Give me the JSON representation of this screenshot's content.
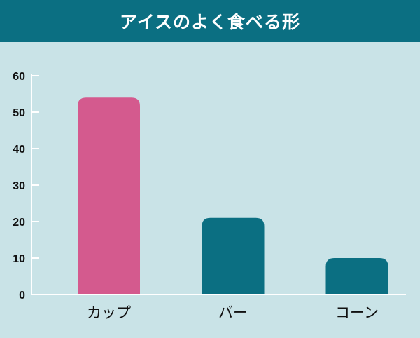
{
  "chart_data": {
    "type": "bar",
    "title": "アイスのよく食べる形",
    "categories": [
      "カップ",
      "バー",
      "コーン"
    ],
    "values": [
      54,
      21,
      10
    ],
    "colors": [
      "#d45a8e",
      "#0b6f82",
      "#0b6f82"
    ],
    "ylim": [
      0,
      60
    ],
    "yticks": [
      0,
      10,
      20,
      30,
      40,
      50,
      60
    ],
    "xlabel": "",
    "ylabel": "",
    "grid": false
  },
  "colors": {
    "header": "#0b6f82",
    "background": "#c9e3e7"
  }
}
